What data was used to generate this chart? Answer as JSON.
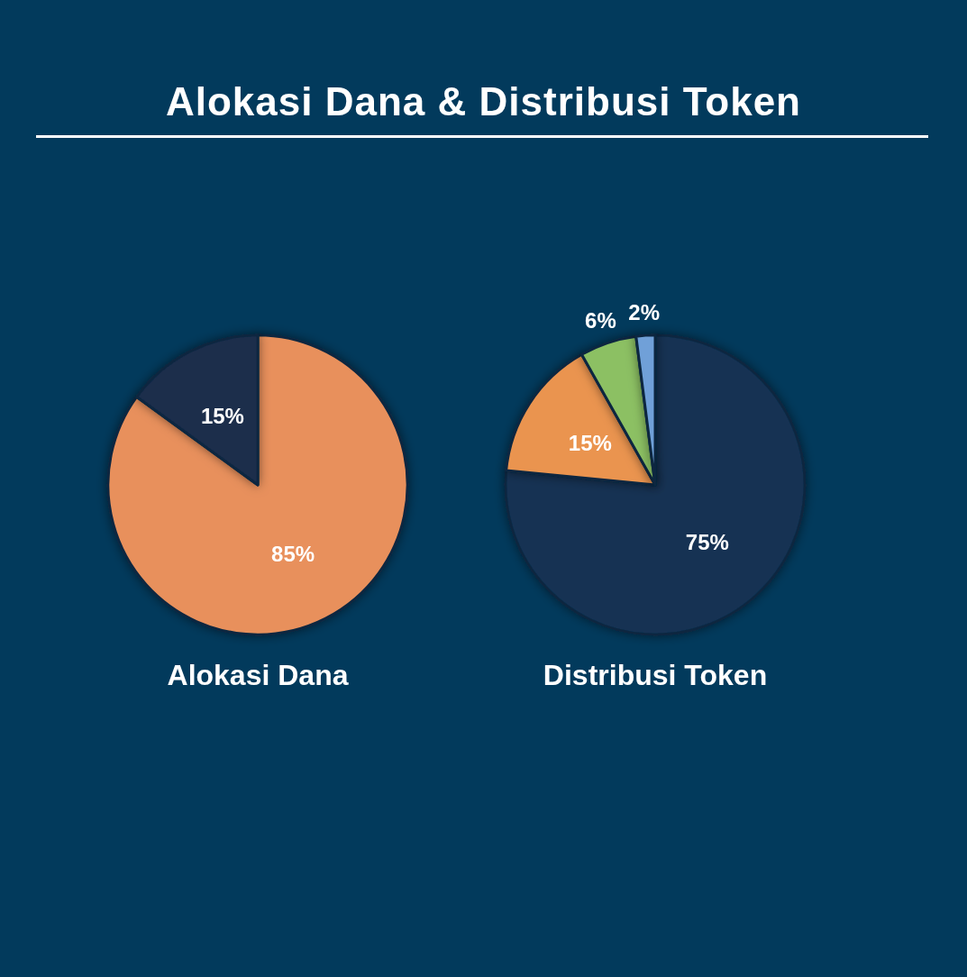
{
  "chart_data": [
    {
      "type": "pie",
      "title": "Alokasi Dana",
      "annotations": [
        "Alokasi Dana & Distribusi Token"
      ],
      "categories": [
        null,
        null
      ],
      "values": [
        85,
        15
      ],
      "colors": [
        "#e8905c",
        "#1a2d4c"
      ],
      "value_labels": [
        "85%",
        "15%"
      ]
    },
    {
      "type": "pie",
      "title": "Distribusi Token",
      "categories": [
        null,
        null,
        null,
        null
      ],
      "values": [
        75,
        15,
        6,
        2
      ],
      "colors": [
        "#123153",
        "#ea9450",
        "#8cc063",
        "#6fa0d8"
      ],
      "value_labels": [
        "75%",
        "15%",
        "6%",
        "2%"
      ]
    }
  ]
}
